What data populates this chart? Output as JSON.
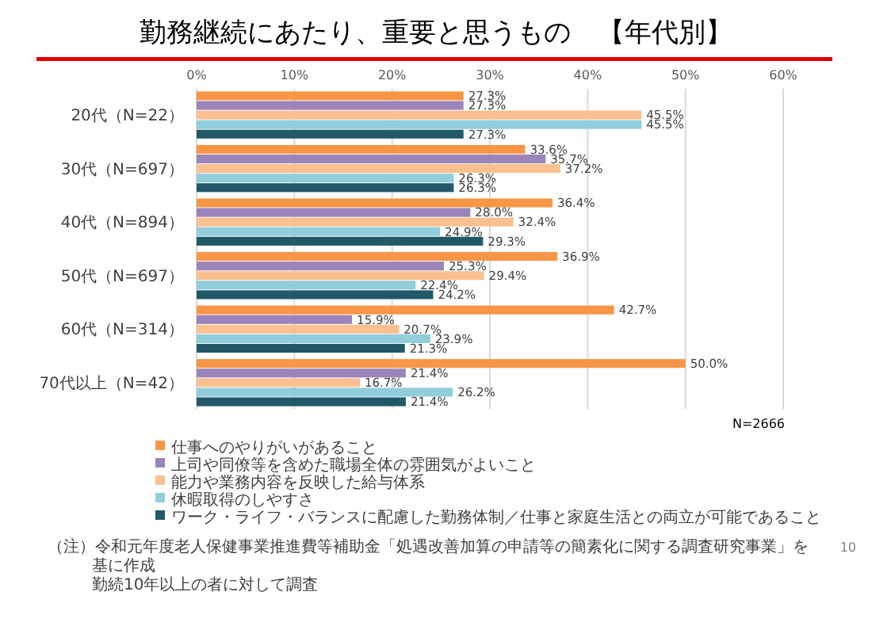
{
  "chart_data": {
    "type": "bar",
    "orientation": "horizontal",
    "title": "勤務継続にあたり、重要と思うもの　【年代別】",
    "categories": [
      "20代（N=22）",
      "30代（N=697）",
      "40代（N=894）",
      "50代（N=697）",
      "60代（N=314）",
      "70代以上（N=42）"
    ],
    "series": [
      {
        "name": "仕事へのやりがいがあること",
        "color": "#f79646",
        "values": [
          27.3,
          33.6,
          36.4,
          36.9,
          42.7,
          50.0
        ],
        "value_labels": [
          "27.3%",
          "33.6%",
          "36.4%",
          "36.9%",
          "42.7%",
          "50.0%"
        ]
      },
      {
        "name": "上司や同僚等を含めた職場全体の雰囲気がよいこと",
        "color": "#9b84ba",
        "values": [
          27.3,
          35.7,
          28.0,
          25.3,
          15.9,
          21.4
        ],
        "value_labels": [
          "27.3%",
          "35.7%",
          "28.0%",
          "25.3%",
          "15.9%",
          "21.4%"
        ]
      },
      {
        "name": "能力や業務内容を反映した給与体系",
        "color": "#fac090",
        "values": [
          45.5,
          37.2,
          32.4,
          29.4,
          20.7,
          16.7
        ],
        "value_labels": [
          "45.5%",
          "37.2%",
          "32.4%",
          "29.4%",
          "20.7%",
          "16.7%"
        ]
      },
      {
        "name": "休暇取得のしやすさ",
        "color": "#92cddc",
        "values": [
          45.5,
          26.3,
          24.9,
          22.4,
          23.9,
          26.2
        ],
        "value_labels": [
          "45.5%",
          "26.3%",
          "24.9%",
          "22.4%",
          "23.9%",
          "26.2%"
        ]
      },
      {
        "name": "ワーク・ライフ・バランスに配慮した勤務体制／仕事と家庭生活との両立が可能であること",
        "color": "#215968",
        "values": [
          27.3,
          26.3,
          29.3,
          24.2,
          21.3,
          21.4
        ],
        "value_labels": [
          "27.3%",
          "26.3%",
          "29.3%",
          "24.2%",
          "21.3%",
          "21.4%"
        ]
      }
    ],
    "xlim": [
      0,
      60
    ],
    "xticks": [
      {
        "value": 0,
        "label": "0%"
      },
      {
        "value": 10,
        "label": "10%"
      },
      {
        "value": 20,
        "label": "20%"
      },
      {
        "value": 30,
        "label": "30%"
      },
      {
        "value": 40,
        "label": "40%"
      },
      {
        "value": 50,
        "label": "50%"
      },
      {
        "value": 60,
        "label": "60%"
      }
    ],
    "grid": "x",
    "legend": "bottom",
    "annotations": [
      "N=2666",
      "（注）令和元年度老人保健事業推進費等補助金「処遇改善加算の申請等の簡素化に関する調査研究事業」を基に作成",
      "勤続10年以上の者に対して調査",
      "10"
    ]
  }
}
